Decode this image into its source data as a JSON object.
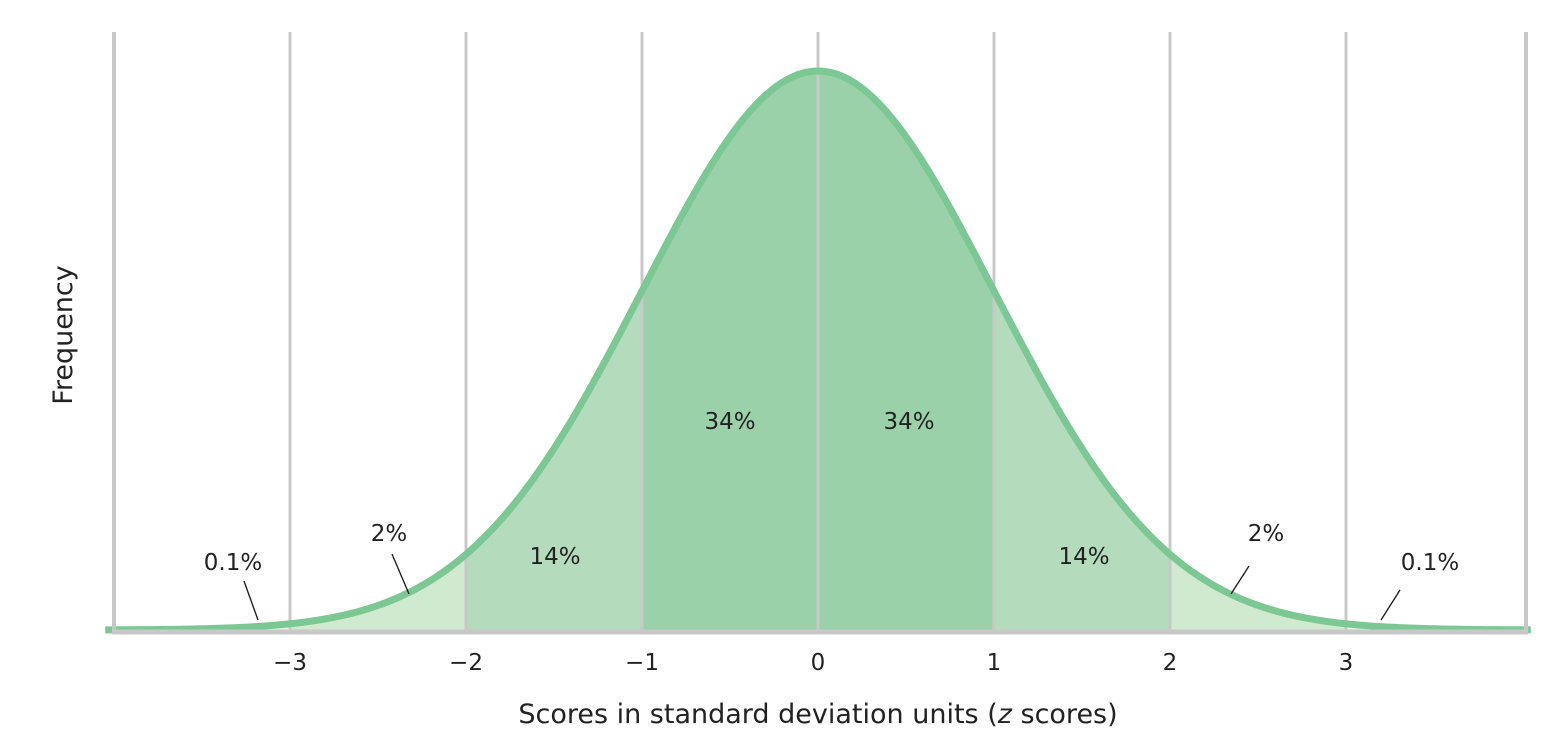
{
  "chart_data": {
    "type": "area",
    "xlabel_prefix": "Scores in standard deviation units (",
    "xlabel_var": "z",
    "xlabel_suffix": " scores)",
    "ylabel": "Frequency",
    "xlim": [
      -4,
      4
    ],
    "xticks": [
      {
        "value": -3,
        "label": "−3"
      },
      {
        "value": -2,
        "label": "−2"
      },
      {
        "value": -1,
        "label": "−1"
      },
      {
        "value": 0,
        "label": "0"
      },
      {
        "value": 1,
        "label": "1"
      },
      {
        "value": 2,
        "label": "2"
      },
      {
        "value": 3,
        "label": "3"
      }
    ],
    "grid": true,
    "regions": [
      {
        "from": -4,
        "to": -3,
        "label": "0.1%",
        "color": "#e6f3e8"
      },
      {
        "from": -3,
        "to": -2,
        "label": "2%",
        "color": "#d0eacf"
      },
      {
        "from": -2,
        "to": -1,
        "label": "14%",
        "color": "#b4dcbc"
      },
      {
        "from": -1,
        "to": 0,
        "label": "34%",
        "color": "#9bd1a9"
      },
      {
        "from": 0,
        "to": 1,
        "label": "34%",
        "color": "#9bd1a9"
      },
      {
        "from": 1,
        "to": 2,
        "label": "14%",
        "color": "#b4dcbc"
      },
      {
        "from": 2,
        "to": 3,
        "label": "2%",
        "color": "#d0eacf"
      },
      {
        "from": 3,
        "to": 4,
        "label": "0.1%",
        "color": "#e6f3e8"
      }
    ],
    "curve_color": "#7cc894",
    "grid_color": "#c8c8c8"
  }
}
